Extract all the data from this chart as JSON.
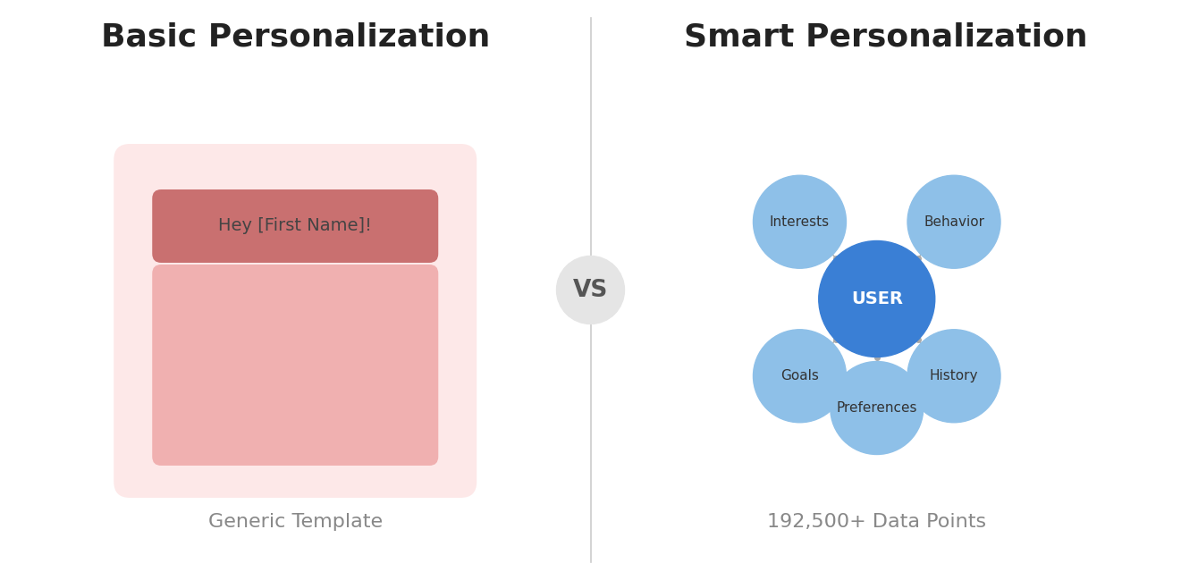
{
  "background_color": "#ffffff",
  "left_title": "Basic Personalization",
  "right_title": "Smart Personalization",
  "vs_text": "VS",
  "left_subtitle": "Generic Template",
  "right_subtitle": "192,500+ Data Points",
  "title_fontsize": 26,
  "title_color": "#222222",
  "subtitle_fontsize": 16,
  "subtitle_color": "#888888",
  "vs_fontsize": 19,
  "vs_color": "#555555",
  "vs_bg_color": "#e5e5e5",
  "divider_color": "#cccccc",
  "outer_box_color": "#fde8e8",
  "header_bar_color": "#c97070",
  "content_box_color": "#f0b0b0",
  "hey_text": "Hey [First Name]!",
  "hey_fontsize": 14,
  "hey_text_color": "#444444",
  "user_circle_color": "#3a7fd5",
  "user_text_color": "#ffffff",
  "user_text": "USER",
  "satellite_circle_color": "#8ec0e8",
  "satellite_labels": [
    "Interests",
    "Behavior",
    "Goals",
    "History",
    "Preferences"
  ],
  "satellite_angles_deg": [
    -135,
    -45,
    135,
    45,
    90
  ],
  "satellite_label_fontsize": 11,
  "satellite_label_color": "#333333",
  "line_color": "#aaaaaa",
  "dot_color": "#aaaaaa"
}
